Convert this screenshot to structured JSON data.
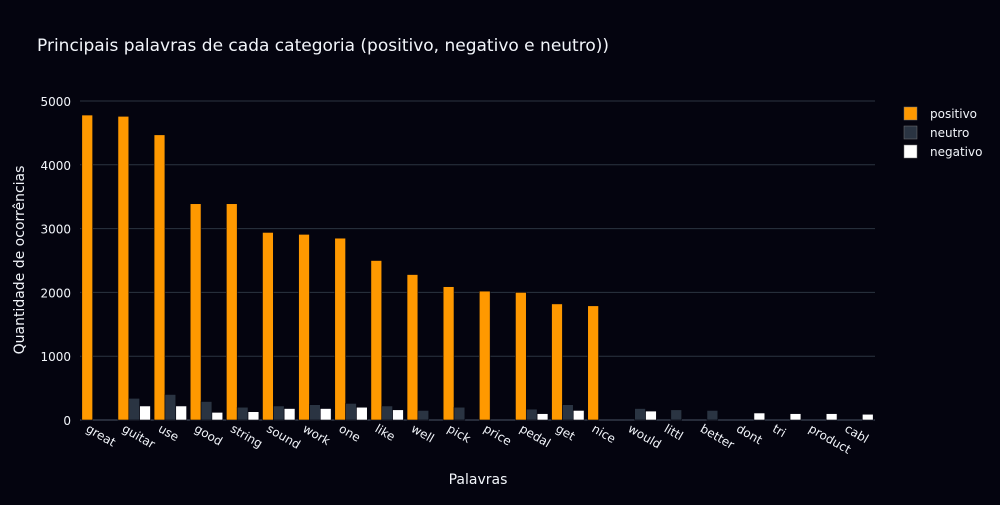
{
  "chart_data": {
    "type": "bar",
    "title": "Principais palavras de cada categoria (positivo, negativo e neutro))",
    "xlabel": "Palavras",
    "ylabel": "Quantidade de ocorrências",
    "ylim": [
      0,
      5000
    ],
    "yticks": [
      0,
      1000,
      2000,
      3000,
      4000,
      5000
    ],
    "grid": true,
    "legend_position": "top-right",
    "categories": [
      "great",
      "guitar",
      "use",
      "good",
      "string",
      "sound",
      "work",
      "one",
      "like",
      "well",
      "pick",
      "price",
      "pedal",
      "get",
      "nice",
      "would",
      "littl",
      "better",
      "dont",
      "tri",
      "product",
      "cabl"
    ],
    "series": [
      {
        "name": "positivo",
        "color": "#ff9900",
        "values": [
          4780,
          4760,
          4470,
          3390,
          3390,
          2940,
          2910,
          2850,
          2500,
          2280,
          2090,
          2020,
          2000,
          1820,
          1790,
          0,
          0,
          0,
          0,
          0,
          0,
          0
        ]
      },
      {
        "name": "neutro",
        "color": "#2a3442",
        "values": [
          0,
          340,
          400,
          290,
          200,
          220,
          240,
          260,
          220,
          150,
          200,
          0,
          170,
          240,
          0,
          180,
          160,
          150,
          0,
          0,
          0,
          0
        ]
      },
      {
        "name": "negativo",
        "color": "#ffffff",
        "values": [
          0,
          220,
          220,
          120,
          130,
          180,
          180,
          200,
          160,
          0,
          0,
          0,
          100,
          150,
          0,
          140,
          0,
          0,
          110,
          100,
          100,
          90
        ]
      }
    ]
  }
}
